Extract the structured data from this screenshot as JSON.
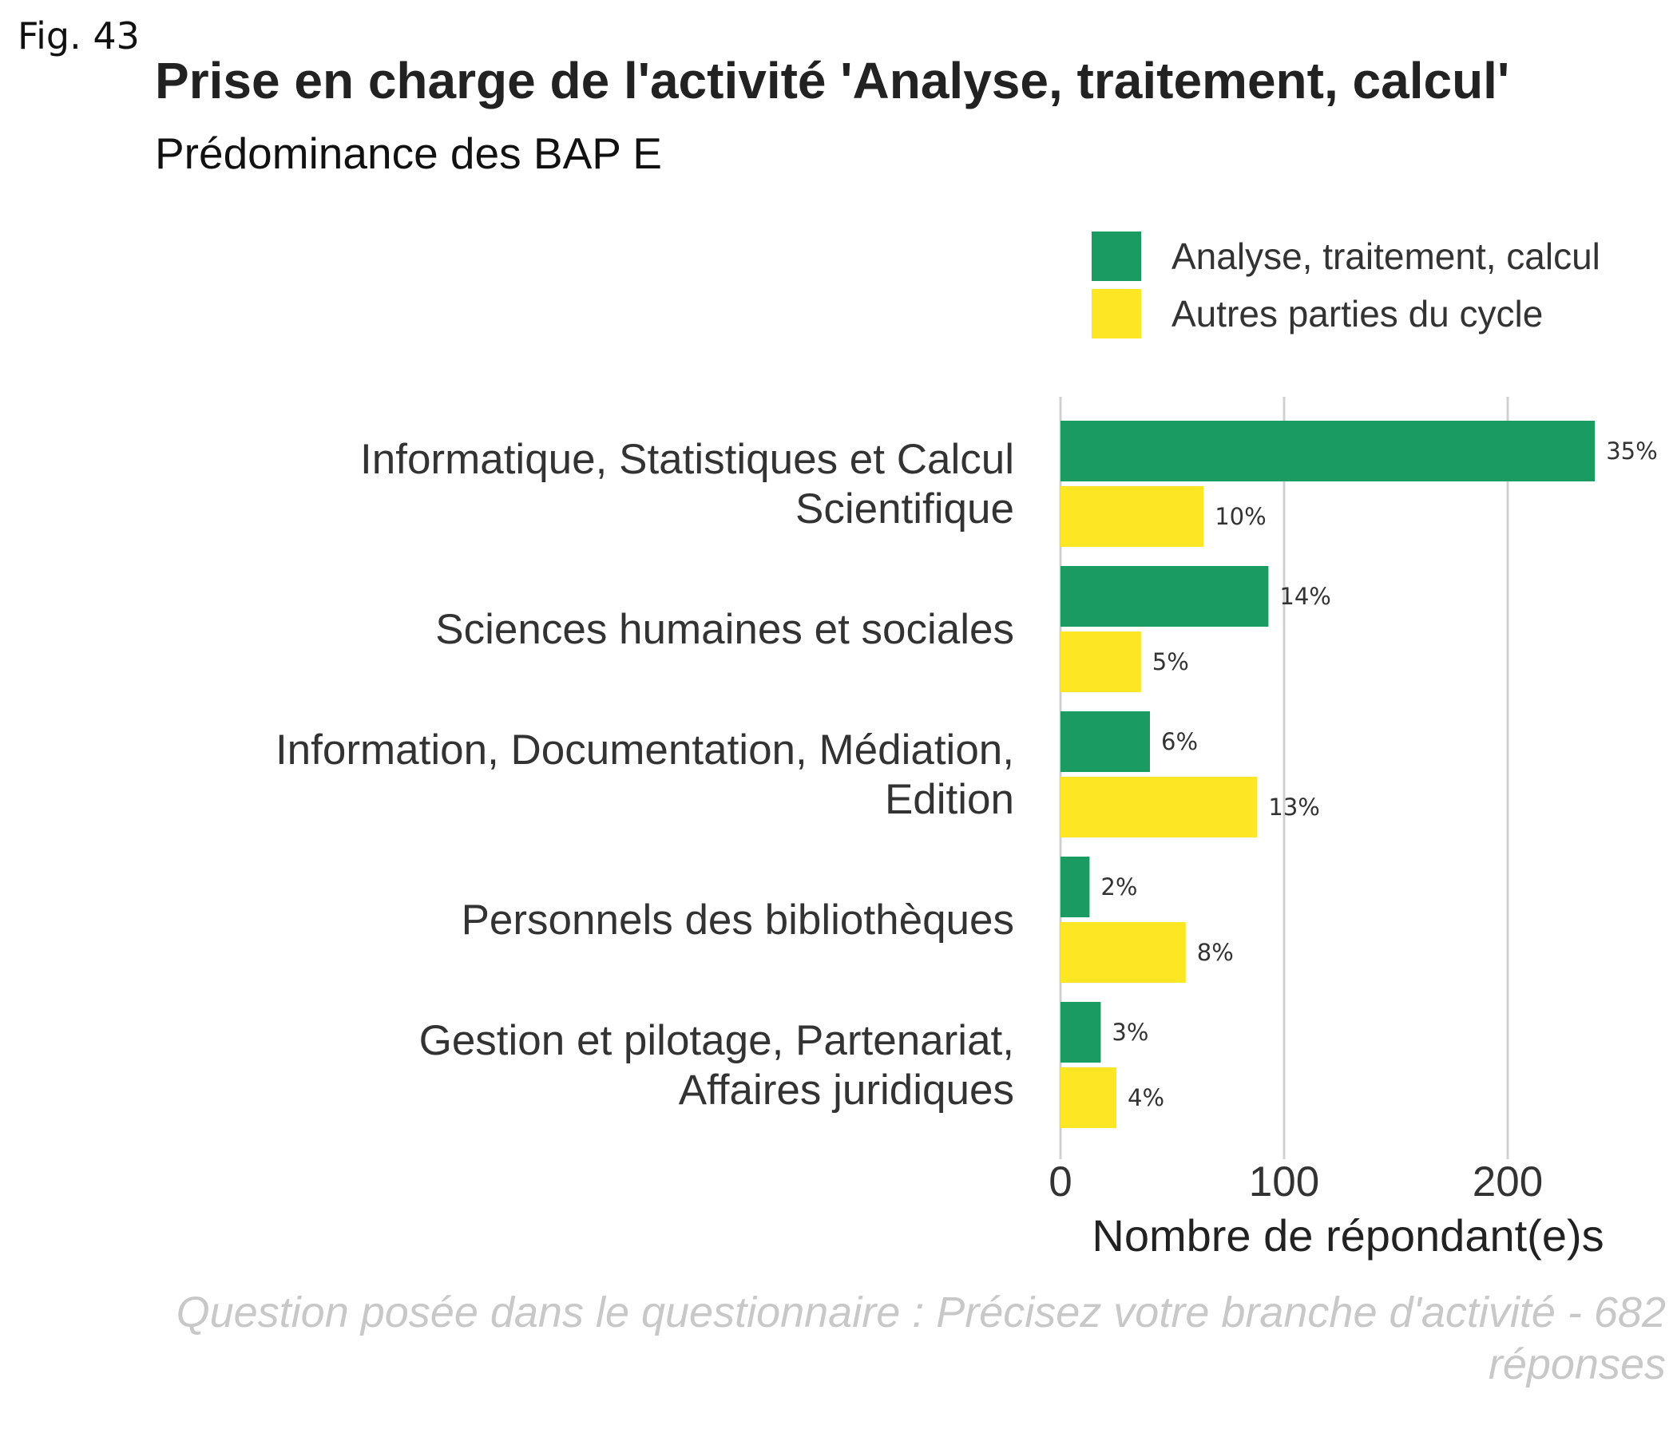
{
  "figure_label": "Fig. 43",
  "chart_data": {
    "type": "bar",
    "orientation": "horizontal",
    "title": "Prise en charge de l'activité 'Analyse, traitement, calcul'",
    "subtitle": "Prédominance des BAP E",
    "categories": [
      [
        "Informatique, Statistiques et Calcul",
        "Scientifique"
      ],
      [
        "Sciences humaines et sociales"
      ],
      [
        "Information, Documentation, Médiation,",
        "Edition"
      ],
      [
        "Personnels des bibliothèques"
      ],
      [
        "Gestion et pilotage, Partenariat,",
        "Affaires juridiques"
      ]
    ],
    "series": [
      {
        "name": "Analyse, traitement, calcul",
        "color": "#199b62",
        "values": [
          239,
          93,
          40,
          13,
          18
        ],
        "labels": [
          "35%",
          "14%",
          "6%",
          "2%",
          "3%"
        ]
      },
      {
        "name": "Autres parties du cycle",
        "color": "#fde725",
        "values": [
          64,
          36,
          88,
          56,
          25
        ],
        "labels": [
          "10%",
          "5%",
          "13%",
          "8%",
          "4%"
        ]
      }
    ],
    "xlabel": "Nombre de répondant(e)s",
    "ylabel": "",
    "xlim": [
      0,
      250
    ],
    "xticks": [
      0,
      100,
      200
    ],
    "grid": "vertical major",
    "legend_position": "top-right",
    "caption": "Question posée dans le questionnaire : Précisez votre branche d'activité - 682 réponses"
  }
}
